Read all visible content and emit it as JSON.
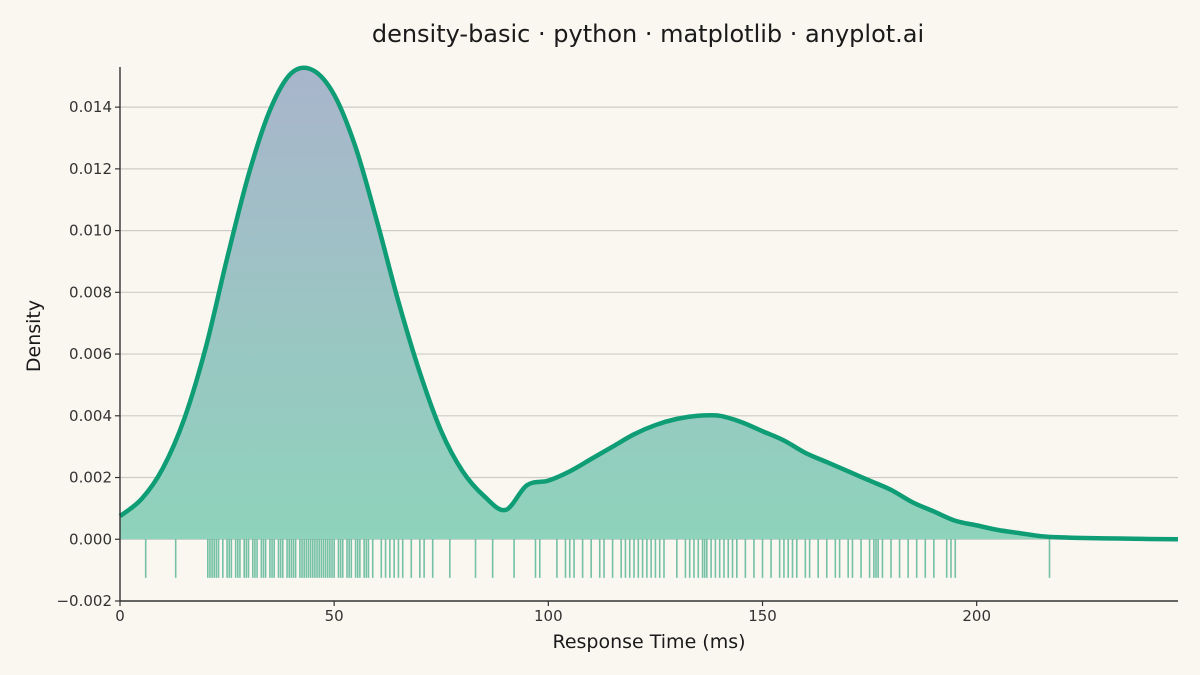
{
  "chart_data": {
    "type": "area",
    "title": "density-basic · python · matplotlib · anyplot.ai",
    "xlabel": "Response Time (ms)",
    "ylabel": "Density",
    "xlim": [
      0,
      247
    ],
    "ylim": [
      -0.002,
      0.0153
    ],
    "xticks": [
      0,
      50,
      100,
      150,
      200
    ],
    "yticks": [
      -0.002,
      0.0,
      0.002,
      0.004,
      0.006,
      0.008,
      0.01,
      0.012,
      0.014
    ],
    "ytick_labels": [
      "−0.002",
      "0.000",
      "0.002",
      "0.004",
      "0.006",
      "0.008",
      "0.010",
      "0.012",
      "0.014"
    ],
    "grid": "y",
    "series": [
      {
        "x": [
          0,
          5,
          10,
          15,
          20,
          25,
          30,
          35,
          40,
          45,
          50,
          55,
          60,
          65,
          70,
          75,
          80,
          85,
          90,
          95,
          100,
          105,
          110,
          115,
          120,
          125,
          130,
          135,
          140,
          145,
          150,
          155,
          160,
          165,
          170,
          175,
          180,
          185,
          190,
          195,
          200,
          205,
          210,
          215,
          220,
          225,
          230,
          235,
          240,
          247
        ],
        "y": [
          0.00075,
          0.0013,
          0.0023,
          0.0039,
          0.0062,
          0.0091,
          0.0118,
          0.0139,
          0.0151,
          0.0152,
          0.0144,
          0.0127,
          0.0103,
          0.0077,
          0.0054,
          0.0035,
          0.0022,
          0.0014,
          0.00095,
          0.00175,
          0.0019,
          0.0022,
          0.0026,
          0.003,
          0.0034,
          0.0037,
          0.0039,
          0.004,
          0.004,
          0.0038,
          0.0035,
          0.0032,
          0.0028,
          0.0025,
          0.0022,
          0.0019,
          0.0016,
          0.0012,
          0.0009,
          0.0006,
          0.00045,
          0.0003,
          0.0002,
          0.0001,
          6e-05,
          4e-05,
          3e-05,
          2e-05,
          1e-05,
          0.0
        ]
      }
    ],
    "rug": [
      6,
      13,
      20.5,
      21,
      21.5,
      22,
      22.5,
      23,
      24,
      25,
      25.5,
      26,
      27,
      27.5,
      28,
      29,
      29.5,
      30,
      31,
      31.5,
      32,
      33,
      33.5,
      34,
      35,
      35.5,
      36,
      37,
      37.5,
      38,
      39,
      39.5,
      40,
      40.5,
      41,
      42,
      42.5,
      43,
      43.5,
      44,
      44.5,
      45,
      45.5,
      46,
      46.5,
      47,
      47.5,
      48,
      48.5,
      49,
      49.5,
      50,
      51,
      51.5,
      52,
      53,
      53.5,
      54,
      55,
      55.5,
      56,
      57,
      57.5,
      58,
      59,
      61,
      62,
      63,
      64,
      65,
      66,
      68,
      70,
      71,
      73,
      77,
      83,
      87,
      92,
      97,
      98,
      102,
      104,
      105,
      106,
      108,
      110,
      112,
      113,
      115,
      117,
      118,
      119,
      120,
      121,
      122,
      123,
      124,
      125,
      126,
      127,
      130,
      132,
      133,
      134,
      135,
      136,
      136.5,
      137,
      138,
      139,
      140,
      141,
      142,
      143,
      144,
      146,
      148,
      150,
      152,
      154,
      155,
      156,
      157,
      158,
      160,
      161,
      163,
      165,
      167,
      168,
      170,
      171,
      173,
      175,
      176,
      176.5,
      177,
      178,
      180,
      182,
      184,
      186,
      188,
      190,
      193,
      194,
      195,
      217
    ],
    "line_color": "#0f9d76",
    "fill_color_top": "#a9b5cc",
    "fill_color_bottom": "#8ed3bb",
    "rug_color": "#1a9c74"
  }
}
